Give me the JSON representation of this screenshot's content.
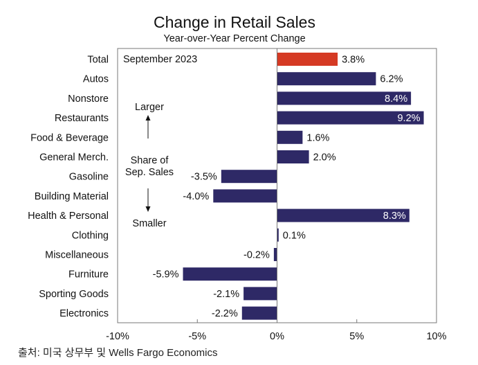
{
  "chart_data": {
    "type": "bar",
    "orientation": "horizontal",
    "title": "Change in Retail Sales",
    "subtitle": "Year-over-Year Percent Change",
    "period_label": "September 2023",
    "categories": [
      "Total",
      "Autos",
      "Nonstore",
      "Restaurants",
      "Food & Beverage",
      "General Merch.",
      "Gasoline",
      "Building Material",
      "Health & Personal",
      "Clothing",
      "Miscellaneous",
      "Furniture",
      "Sporting Goods",
      "Electronics"
    ],
    "values": [
      3.8,
      6.2,
      8.4,
      9.2,
      1.6,
      2.0,
      -3.5,
      -4.0,
      8.3,
      0.1,
      -0.2,
      -5.9,
      -2.1,
      -2.2
    ],
    "value_labels": [
      "3.8%",
      "6.2%",
      "8.4%",
      "9.2%",
      "1.6%",
      "2.0%",
      "-3.5%",
      "-4.0%",
      "8.3%",
      "0.1%",
      "-0.2%",
      "-5.9%",
      "-2.1%",
      "-2.2%"
    ],
    "label_inside": [
      false,
      false,
      true,
      true,
      false,
      false,
      false,
      false,
      true,
      false,
      false,
      false,
      false,
      false
    ],
    "highlight_index": 0,
    "xlim": [
      -10,
      10
    ],
    "xticks": [
      -10,
      -5,
      0,
      5,
      10
    ],
    "xtick_labels": [
      "-10%",
      "-5%",
      "0%",
      "5%",
      "10%"
    ],
    "grid": false,
    "annotation": {
      "larger": "Larger",
      "share_line1": "Share of",
      "share_line2": "Sep. Sales",
      "smaller": "Smaller"
    },
    "colors": {
      "bar": "#2e2966",
      "highlight": "#d53a24",
      "text": "#111111"
    }
  },
  "source": "출처: 미국 상무부 및 Wells Fargo Economics"
}
